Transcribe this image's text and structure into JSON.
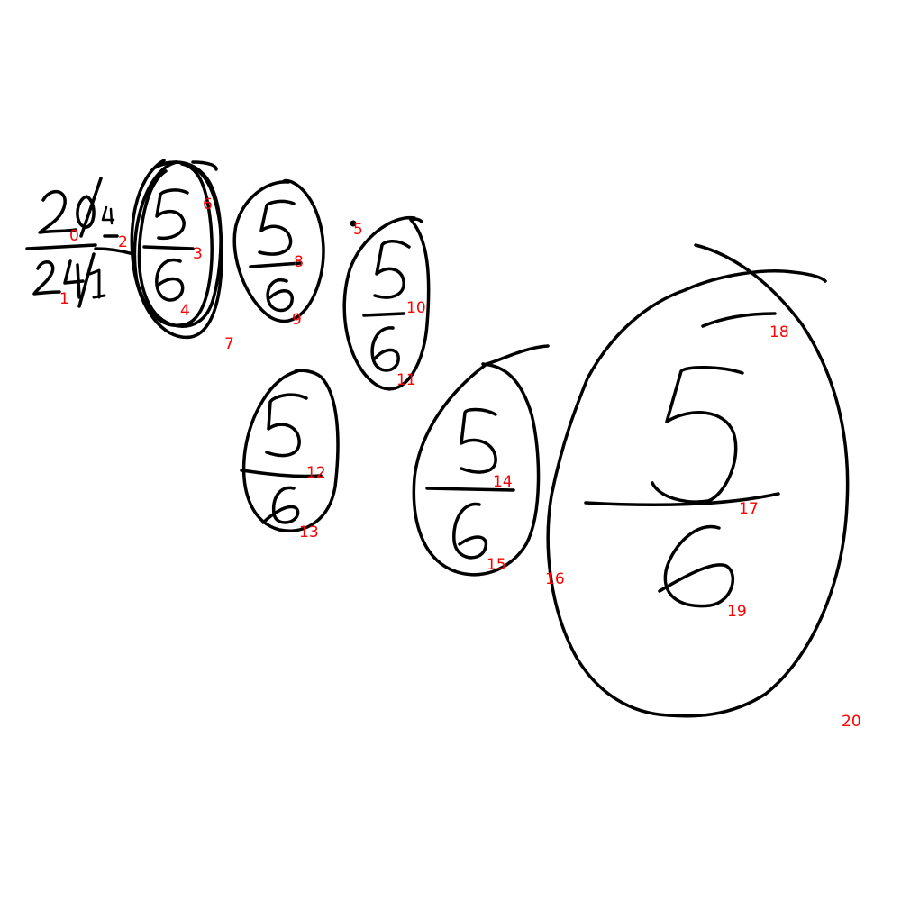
{
  "colors": {
    "ink": "#000000",
    "label": "#ff0000",
    "background": "#ffffff"
  },
  "labels": [
    "0",
    "1",
    "2",
    "3",
    "4",
    "5",
    "6",
    "7",
    "8",
    "9",
    "10",
    "11",
    "12",
    "13",
    "14",
    "15",
    "16",
    "17",
    "18",
    "19",
    "20"
  ]
}
